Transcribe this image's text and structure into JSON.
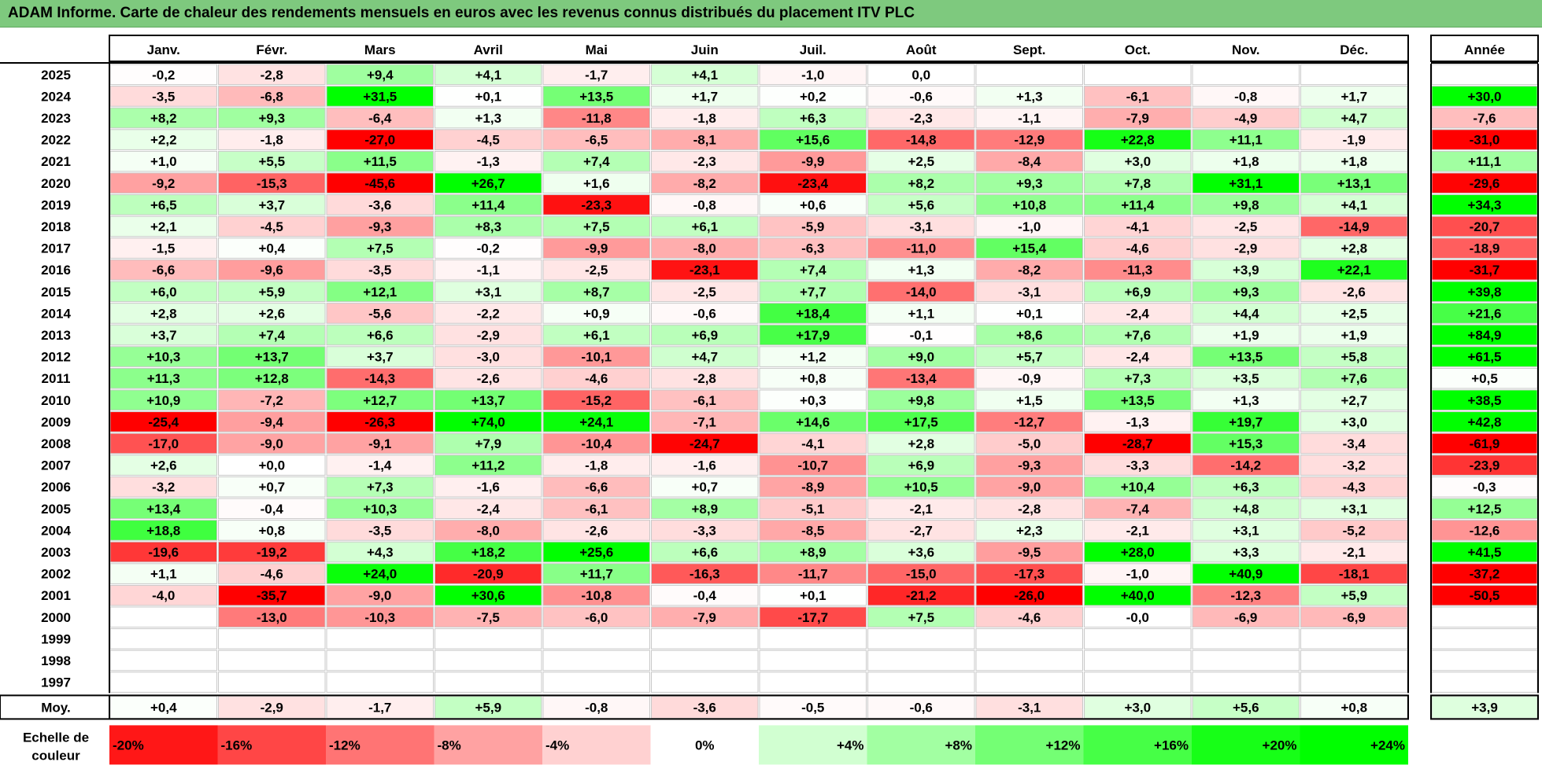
{
  "title": "ADAM Informe. Carte de chaleur des rendements mensuels en euros avec les revenus connus distribués du placement ITV PLC",
  "chart_data": {
    "type": "heatmap",
    "columns": [
      "Janv.",
      "Févr.",
      "Mars",
      "Avril",
      "Mai",
      "Juin",
      "Juil.",
      "Août",
      "Sept.",
      "Oct.",
      "Nov.",
      "Déc."
    ],
    "year_column_label": "Année",
    "rows": [
      {
        "year": "2025",
        "values": [
          "-0,2",
          "-2,8",
          "+9,4",
          "+4,1",
          "-1,7",
          "+4,1",
          "-1,0",
          "0,0",
          "",
          "",
          "",
          ""
        ],
        "annual": ""
      },
      {
        "year": "2024",
        "values": [
          "-3,5",
          "-6,8",
          "+31,5",
          "+0,1",
          "+13,5",
          "+1,7",
          "+0,2",
          "-0,6",
          "+1,3",
          "-6,1",
          "-0,8",
          "+1,7"
        ],
        "annual": "+30,0"
      },
      {
        "year": "2023",
        "values": [
          "+8,2",
          "+9,3",
          "-6,4",
          "+1,3",
          "-11,8",
          "-1,8",
          "+6,3",
          "-2,3",
          "-1,1",
          "-7,9",
          "-4,9",
          "+4,7"
        ],
        "annual": "-7,6"
      },
      {
        "year": "2022",
        "values": [
          "+2,2",
          "-1,8",
          "-27,0",
          "-4,5",
          "-6,5",
          "-8,1",
          "+15,6",
          "-14,8",
          "-12,9",
          "+22,8",
          "+11,1",
          "-1,9"
        ],
        "annual": "-31,0"
      },
      {
        "year": "2021",
        "values": [
          "+1,0",
          "+5,5",
          "+11,5",
          "-1,3",
          "+7,4",
          "-2,3",
          "-9,9",
          "+2,5",
          "-8,4",
          "+3,0",
          "+1,8",
          "+1,8"
        ],
        "annual": "+11,1"
      },
      {
        "year": "2020",
        "values": [
          "-9,2",
          "-15,3",
          "-45,6",
          "+26,7",
          "+1,6",
          "-8,2",
          "-23,4",
          "+8,2",
          "+9,3",
          "+7,8",
          "+31,1",
          "+13,1"
        ],
        "annual": "-29,6"
      },
      {
        "year": "2019",
        "values": [
          "+6,5",
          "+3,7",
          "-3,6",
          "+11,4",
          "-23,3",
          "-0,8",
          "+0,6",
          "+5,6",
          "+10,8",
          "+11,4",
          "+9,8",
          "+4,1"
        ],
        "annual": "+34,3"
      },
      {
        "year": "2018",
        "values": [
          "+2,1",
          "-4,5",
          "-9,3",
          "+8,3",
          "+7,5",
          "+6,1",
          "-5,9",
          "-3,1",
          "-1,0",
          "-4,1",
          "-2,5",
          "-14,9"
        ],
        "annual": "-20,7"
      },
      {
        "year": "2017",
        "values": [
          "-1,5",
          "+0,4",
          "+7,5",
          "-0,2",
          "-9,9",
          "-8,0",
          "-6,3",
          "-11,0",
          "+15,4",
          "-4,6",
          "-2,9",
          "+2,8"
        ],
        "annual": "-18,9"
      },
      {
        "year": "2016",
        "values": [
          "-6,6",
          "-9,6",
          "-3,5",
          "-1,1",
          "-2,5",
          "-23,1",
          "+7,4",
          "+1,3",
          "-8,2",
          "-11,3",
          "+3,9",
          "+22,1"
        ],
        "annual": "-31,7"
      },
      {
        "year": "2015",
        "values": [
          "+6,0",
          "+5,9",
          "+12,1",
          "+3,1",
          "+8,7",
          "-2,5",
          "+7,7",
          "-14,0",
          "-3,1",
          "+6,9",
          "+9,3",
          "-2,6"
        ],
        "annual": "+39,8"
      },
      {
        "year": "2014",
        "values": [
          "+2,8",
          "+2,6",
          "-5,6",
          "-2,2",
          "+0,9",
          "-0,6",
          "+18,4",
          "+1,1",
          "+0,1",
          "-2,4",
          "+4,4",
          "+2,5"
        ],
        "annual": "+21,6"
      },
      {
        "year": "2013",
        "values": [
          "+3,7",
          "+7,4",
          "+6,6",
          "-2,9",
          "+6,1",
          "+6,9",
          "+17,9",
          "-0,1",
          "+8,6",
          "+7,6",
          "+1,9",
          "+1,9"
        ],
        "annual": "+84,9"
      },
      {
        "year": "2012",
        "values": [
          "+10,3",
          "+13,7",
          "+3,7",
          "-3,0",
          "-10,1",
          "+4,7",
          "+1,2",
          "+9,0",
          "+5,7",
          "-2,4",
          "+13,5",
          "+5,8"
        ],
        "annual": "+61,5"
      },
      {
        "year": "2011",
        "values": [
          "+11,3",
          "+12,8",
          "-14,3",
          "-2,6",
          "-4,6",
          "-2,8",
          "+0,8",
          "-13,4",
          "-0,9",
          "+7,3",
          "+3,5",
          "+7,6"
        ],
        "annual": "+0,5"
      },
      {
        "year": "2010",
        "values": [
          "+10,9",
          "-7,2",
          "+12,7",
          "+13,7",
          "-15,2",
          "-6,1",
          "+0,3",
          "+9,8",
          "+1,5",
          "+13,5",
          "+1,3",
          "+2,7"
        ],
        "annual": "+38,5"
      },
      {
        "year": "2009",
        "values": [
          "-25,4",
          "-9,4",
          "-26,3",
          "+74,0",
          "+24,1",
          "-7,1",
          "+14,6",
          "+17,5",
          "-12,7",
          "-1,3",
          "+19,7",
          "+3,0"
        ],
        "annual": "+42,8"
      },
      {
        "year": "2008",
        "values": [
          "-17,0",
          "-9,0",
          "-9,1",
          "+7,9",
          "-10,4",
          "-24,7",
          "-4,1",
          "+2,8",
          "-5,0",
          "-28,7",
          "+15,3",
          "-3,4"
        ],
        "annual": "-61,9"
      },
      {
        "year": "2007",
        "values": [
          "+2,6",
          "+0,0",
          "-1,4",
          "+11,2",
          "-1,8",
          "-1,6",
          "-10,7",
          "+6,9",
          "-9,3",
          "-3,3",
          "-14,2",
          "-3,2"
        ],
        "annual": "-23,9"
      },
      {
        "year": "2006",
        "values": [
          "-3,2",
          "+0,7",
          "+7,3",
          "-1,6",
          "-6,6",
          "+0,7",
          "-8,9",
          "+10,5",
          "-9,0",
          "+10,4",
          "+6,3",
          "-4,3"
        ],
        "annual": "-0,3"
      },
      {
        "year": "2005",
        "values": [
          "+13,4",
          "-0,4",
          "+10,3",
          "-2,4",
          "-6,1",
          "+8,9",
          "-5,1",
          "-2,1",
          "-2,8",
          "-7,4",
          "+4,8",
          "+3,1"
        ],
        "annual": "+12,5"
      },
      {
        "year": "2004",
        "values": [
          "+18,8",
          "+0,8",
          "-3,5",
          "-8,0",
          "-2,6",
          "-3,3",
          "-8,5",
          "-2,7",
          "+2,3",
          "-2,1",
          "+3,1",
          "-5,2"
        ],
        "annual": "-12,6"
      },
      {
        "year": "2003",
        "values": [
          "-19,6",
          "-19,2",
          "+4,3",
          "+18,2",
          "+25,6",
          "+6,6",
          "+8,9",
          "+3,6",
          "-9,5",
          "+28,0",
          "+3,3",
          "-2,1"
        ],
        "annual": "+41,5"
      },
      {
        "year": "2002",
        "values": [
          "+1,1",
          "-4,6",
          "+24,0",
          "-20,9",
          "+11,7",
          "-16,3",
          "-11,7",
          "-15,0",
          "-17,3",
          "-1,0",
          "+40,9",
          "-18,1"
        ],
        "annual": "-37,2"
      },
      {
        "year": "2001",
        "values": [
          "-4,0",
          "-35,7",
          "-9,0",
          "+30,6",
          "-10,8",
          "-0,4",
          "+0,1",
          "-21,2",
          "-26,0",
          "+40,0",
          "-12,3",
          "+5,9"
        ],
        "annual": "-50,5"
      },
      {
        "year": "2000",
        "values": [
          "",
          "-13,0",
          "-10,3",
          "-7,5",
          "-6,0",
          "-7,9",
          "-17,7",
          "+7,5",
          "-4,6",
          "-0,0",
          "-6,9",
          "-6,9"
        ],
        "annual": ""
      },
      {
        "year": "1999",
        "values": [
          "",
          "",
          "",
          "",
          "",
          "",
          "",
          "",
          "",
          "",
          "",
          ""
        ],
        "annual": ""
      },
      {
        "year": "1998",
        "values": [
          "",
          "",
          "",
          "",
          "",
          "",
          "",
          "",
          "",
          "",
          "",
          ""
        ],
        "annual": ""
      },
      {
        "year": "1997",
        "values": [
          "",
          "",
          "",
          "",
          "",
          "",
          "",
          "",
          "",
          "",
          "",
          ""
        ],
        "annual": ""
      }
    ],
    "average": {
      "label": "Moy.",
      "values": [
        "+0,4",
        "-2,9",
        "-1,7",
        "+5,9",
        "-0,8",
        "-3,6",
        "-0,5",
        "-0,6",
        "-3,1",
        "+3,0",
        "+5,6",
        "+0,8"
      ],
      "annual": "+3,9"
    },
    "legend": {
      "title": "Echelle de couleur",
      "steps": [
        "-20%",
        "-16%",
        "-12%",
        "-8%",
        "-4%",
        "0%",
        "+4%",
        "+8%",
        "+12%",
        "+16%",
        "+20%",
        "+24%"
      ]
    }
  }
}
